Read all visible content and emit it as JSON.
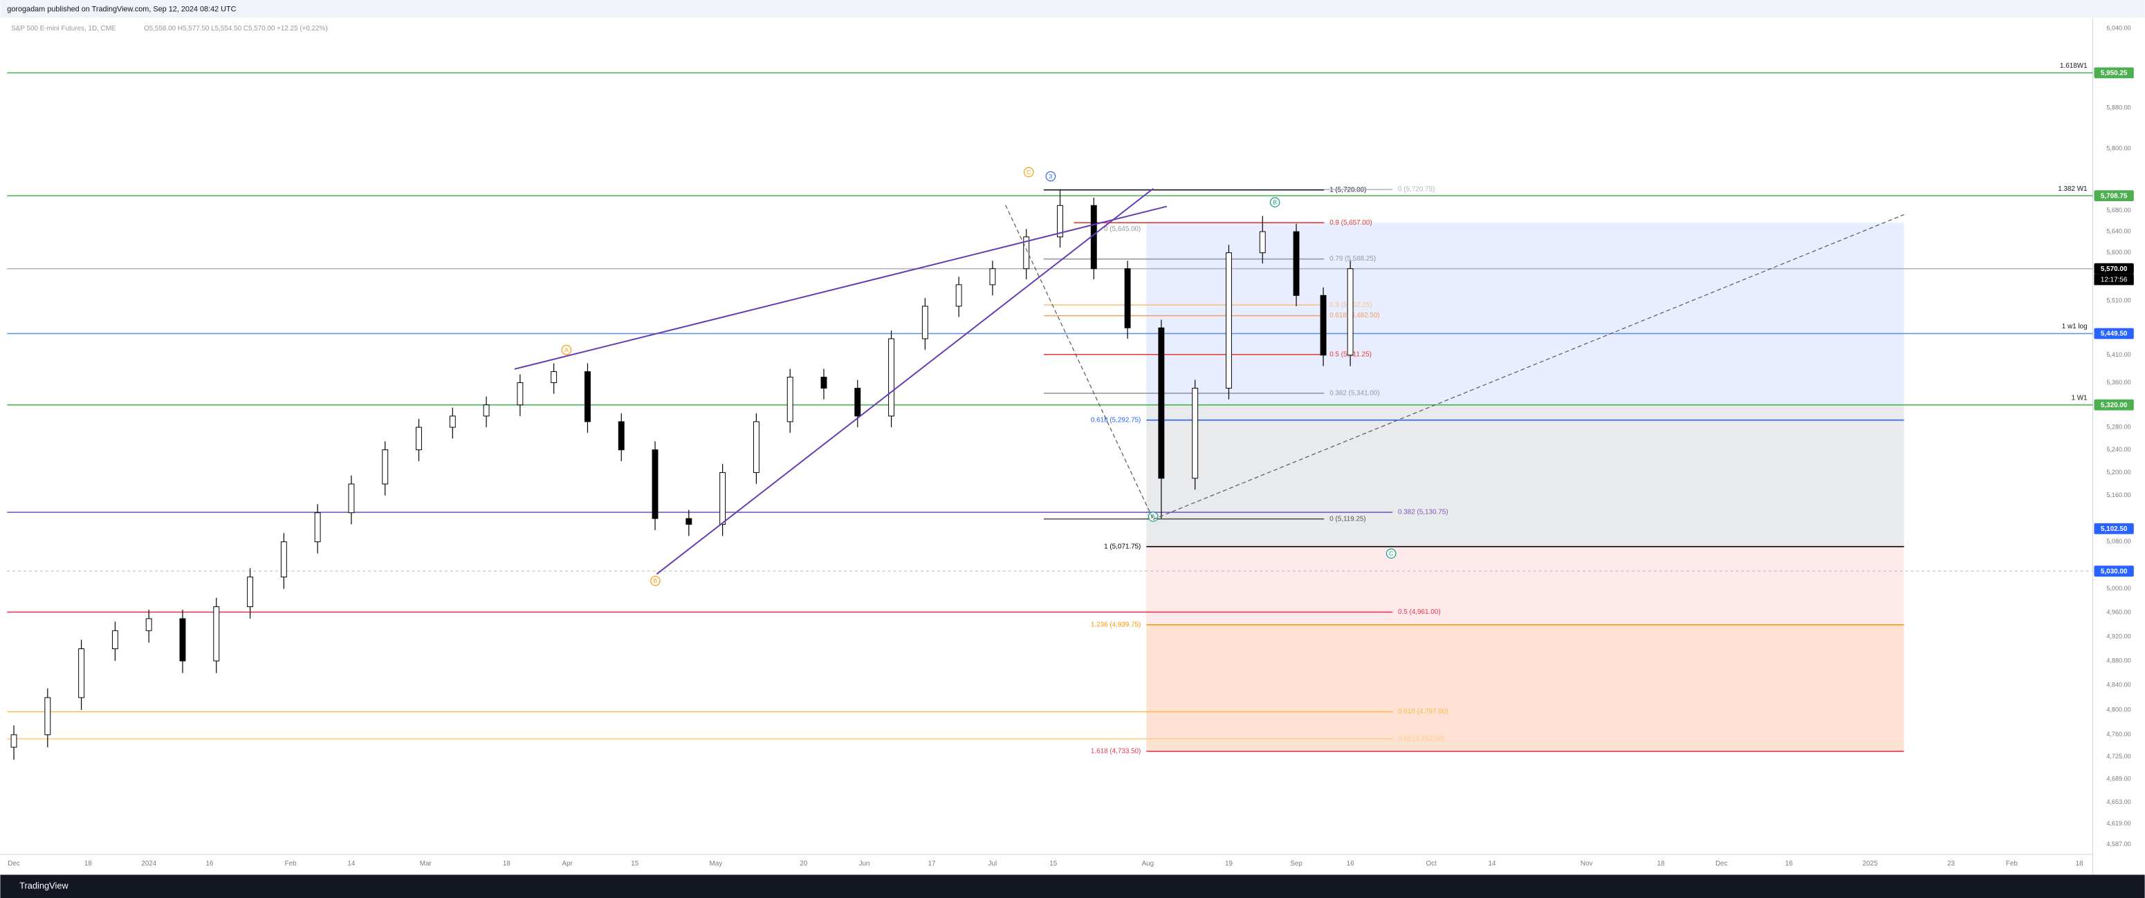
{
  "header": {
    "published": "gorogadam published on TradingView.com, Sep 12, 2024 08:42 UTC",
    "symbol": "S&P 500 E-mini Futures, 1D, CME",
    "ohlc": "O5,558.00 H5,577.50 L5,554.50 C5,570.00 +12.25 (+0.22%)"
  },
  "footer": {
    "brand": "TradingView"
  },
  "chart_data": {
    "type": "candlestick",
    "log_scale": true,
    "up_color": "#ffffff",
    "down_color": "#000000",
    "x": [
      0,
      5,
      10,
      15,
      20,
      25,
      30,
      35,
      40,
      45,
      50,
      55,
      60,
      65,
      70,
      75,
      80,
      85,
      90,
      95,
      100,
      105,
      110,
      115,
      120,
      125,
      130,
      135,
      140,
      145,
      150,
      155,
      160,
      165,
      170,
      175,
      180,
      185,
      190,
      194,
      198
    ],
    "open": [
      4740,
      4760,
      4820,
      4900,
      4930,
      4950,
      4880,
      4970,
      5020,
      5080,
      5130,
      5180,
      5240,
      5280,
      5300,
      5320,
      5360,
      5380,
      5290,
      5240,
      5120,
      5110,
      5200,
      5290,
      5370,
      5350,
      5300,
      5440,
      5500,
      5540,
      5570,
      5630,
      5690,
      5570,
      5460,
      5190,
      5350,
      5600,
      5640,
      5520,
      5410
    ],
    "high": [
      4775,
      4835,
      4915,
      4945,
      4965,
      4965,
      4985,
      5035,
      5095,
      5145,
      5195,
      5255,
      5295,
      5315,
      5335,
      5375,
      5395,
      5395,
      5305,
      5255,
      5135,
      5215,
      5305,
      5385,
      5385,
      5365,
      5455,
      5515,
      5555,
      5585,
      5645,
      5720,
      5705,
      5585,
      5475,
      5365,
      5615,
      5670,
      5655,
      5535,
      5585
    ],
    "low": [
      4720,
      4740,
      4800,
      4880,
      4910,
      4860,
      4860,
      4950,
      5000,
      5060,
      5110,
      5160,
      5220,
      5260,
      5280,
      5300,
      5340,
      5270,
      5220,
      5100,
      5090,
      5090,
      5180,
      5270,
      5330,
      5280,
      5280,
      5420,
      5480,
      5520,
      5550,
      5610,
      5550,
      5440,
      5120,
      5170,
      5330,
      5580,
      5500,
      5390,
      5390
    ],
    "close": [
      4760,
      4820,
      4900,
      4930,
      4950,
      4880,
      4970,
      5020,
      5080,
      5130,
      5180,
      5240,
      5280,
      5300,
      5320,
      5360,
      5380,
      5290,
      5240,
      5120,
      5110,
      5200,
      5290,
      5370,
      5350,
      5300,
      5440,
      5500,
      5540,
      5570,
      5630,
      5690,
      5570,
      5460,
      5190,
      5350,
      5600,
      5640,
      5520,
      5410,
      5570
    ],
    "xlim": [
      -1,
      308
    ],
    "ylim": [
      4572,
      6059
    ],
    "xticks": [
      {
        "value": 0,
        "label": "Dec"
      },
      {
        "value": 11,
        "label": "18"
      },
      {
        "value": 20,
        "label": "2024"
      },
      {
        "value": 29,
        "label": "16"
      },
      {
        "value": 41,
        "label": "Feb"
      },
      {
        "value": 50,
        "label": "14"
      },
      {
        "value": 61,
        "label": "Mar"
      },
      {
        "value": 73,
        "label": "18"
      },
      {
        "value": 82,
        "label": "Apr"
      },
      {
        "value": 92,
        "label": "15"
      },
      {
        "value": 104,
        "label": "May"
      },
      {
        "value": 117,
        "label": "20"
      },
      {
        "value": 126,
        "label": "Jun"
      },
      {
        "value": 136,
        "label": "17"
      },
      {
        "value": 145,
        "label": "Jul"
      },
      {
        "value": 154,
        "label": "15"
      },
      {
        "value": 168,
        "label": "Aug"
      },
      {
        "value": 180,
        "label": "19"
      },
      {
        "value": 190,
        "label": "Sep"
      },
      {
        "value": 198,
        "label": "16"
      },
      {
        "value": 210,
        "label": "Oct"
      },
      {
        "value": 219,
        "label": "14"
      },
      {
        "value": 233,
        "label": "Nov"
      },
      {
        "value": 244,
        "label": "18"
      },
      {
        "value": 253,
        "label": "Dec"
      },
      {
        "value": 263,
        "label": "16"
      },
      {
        "value": 275,
        "label": "2025"
      },
      {
        "value": 287,
        "label": "23"
      },
      {
        "value": 296,
        "label": "Feb"
      },
      {
        "value": 306,
        "label": "18"
      }
    ],
    "yticks": [
      {
        "value": 6040,
        "label": "6,040.00"
      },
      {
        "value": 5880,
        "label": "5,880.00"
      },
      {
        "value": 5800,
        "label": "5,800.00"
      },
      {
        "value": 5680,
        "label": "5,680.00"
      },
      {
        "value": 5640,
        "label": "5,640.00"
      },
      {
        "value": 5600,
        "label": "5,600.00"
      },
      {
        "value": 5510,
        "label": "5,510.00"
      },
      {
        "value": 5410,
        "label": "5,410.00"
      },
      {
        "value": 5360,
        "label": "5,360.00"
      },
      {
        "value": 5280,
        "label": "5,280.00"
      },
      {
        "value": 5240,
        "label": "5,240.00"
      },
      {
        "value": 5200,
        "label": "5,200.00"
      },
      {
        "value": 5160,
        "label": "5,160.00"
      },
      {
        "value": 5080,
        "label": "5,080.00"
      },
      {
        "value": 5000,
        "label": "5,000.00"
      },
      {
        "value": 4960,
        "label": "4,960.00"
      },
      {
        "value": 4920,
        "label": "4,920.00"
      },
      {
        "value": 4880,
        "label": "4,880.00"
      },
      {
        "value": 4840,
        "label": "4,840.00"
      },
      {
        "value": 4800,
        "label": "4,800.00"
      },
      {
        "value": 4760,
        "label": "4,760.00"
      },
      {
        "value": 4725,
        "label": "4,725.00"
      },
      {
        "value": 4689,
        "label": "4,689.00"
      },
      {
        "value": 4653,
        "label": "4,653.00"
      },
      {
        "value": 4619,
        "label": "4,619.00"
      },
      {
        "value": 4587,
        "label": "4,587.00"
      }
    ],
    "levels": [
      {
        "value": 5950.25,
        "color": "#4caf50",
        "text": "1.618W1"
      },
      {
        "value": 5708.75,
        "color": "#4caf50",
        "text": "1.382 W1"
      },
      {
        "value": 5720,
        "color": "#131722",
        "text": "1 (5,720.00)"
      },
      {
        "value": 5720.75,
        "color": "#b2b5be",
        "text": "0 (5,720.75)"
      },
      {
        "value": 5657,
        "color": "#e53935",
        "text": "0.9 (5,657.00)"
      },
      {
        "value": 5645,
        "color": "#9598a1",
        "text": "0 (5,645.00)"
      },
      {
        "value": 5588.25,
        "color": "#9598a1",
        "text": "0.79 (5,588.25)"
      },
      {
        "value": 5502.25,
        "color": "#f5c38a",
        "text": "0.5 (5,502.25)"
      },
      {
        "value": 5482.5,
        "color": "#f0a060",
        "text": "0.618 (5,482.50)"
      },
      {
        "value": 5411.25,
        "color": "#e53935",
        "text": "0.5 (5,411.25)"
      },
      {
        "value": 5341,
        "color": "#9598a1",
        "text": "0.382 (5,341.00)"
      },
      {
        "value": 5292.75,
        "color": "#2962ff",
        "text": "0.618 (5,292.75)"
      },
      {
        "value": 5130.75,
        "color": "#7e57c2",
        "text": "0.382 (5,130.75)"
      },
      {
        "value": 5119.25,
        "color": "#555555",
        "text": "0 (5,119.25)"
      },
      {
        "value": 5071.75,
        "color": "#000000",
        "text": "1 (5,071.75)"
      },
      {
        "value": 4961,
        "color": "#e53950",
        "text": "0.5 (4,961.00)"
      },
      {
        "value": 4939.75,
        "color": "#ff9800",
        "text": "1.236 (4,939.75)"
      },
      {
        "value": 4797,
        "color": "#ffb74d",
        "text": "0.618 (4,797.00)"
      },
      {
        "value": 4753.5,
        "color": "#ffcc80",
        "text": "0.65 (4,753.50)"
      },
      {
        "value": 4733.5,
        "color": "#e53950",
        "text": "1.618 (4,733.50)"
      },
      {
        "value": 5449.5,
        "color": "#5b8def",
        "text": "1 w1 log"
      },
      {
        "value": 5320,
        "color": "#4caf50",
        "text": "1 W1"
      },
      {
        "value": 5570,
        "color": "#b2b5be"
      },
      {
        "value": 5030,
        "color": "#b2b5be"
      }
    ],
    "price_tags": [
      {
        "value": 5950.25,
        "label": "5,950.25",
        "color": "#4caf50"
      },
      {
        "value": 5708.75,
        "label": "5,708.75",
        "color": "#4caf50"
      },
      {
        "value": 5570,
        "label": "5,570.00",
        "color": "#000000"
      },
      {
        "value": 5449.5,
        "label": "5,449.50",
        "color": "#2962ff"
      },
      {
        "value": 5320,
        "label": "5,320.00",
        "color": "#4caf50"
      },
      {
        "value": 5102.5,
        "label": "5,102.50",
        "color": "#2962ff"
      },
      {
        "value": 5030,
        "label": "5,030.00",
        "color": "#2962ff"
      }
    ],
    "clock": "12:17:56",
    "wave_labels": [
      {
        "text": "C",
        "color": "#ff9800"
      },
      {
        "text": "3",
        "color": "#2962ff"
      },
      {
        "text": "B",
        "color": "#089981"
      },
      {
        "text": "A",
        "color": "#ff9800"
      },
      {
        "text": "B",
        "color": "#ff9800"
      },
      {
        "text": "A",
        "color": "#089981"
      },
      {
        "text": "C",
        "color": "#089981"
      }
    ]
  }
}
